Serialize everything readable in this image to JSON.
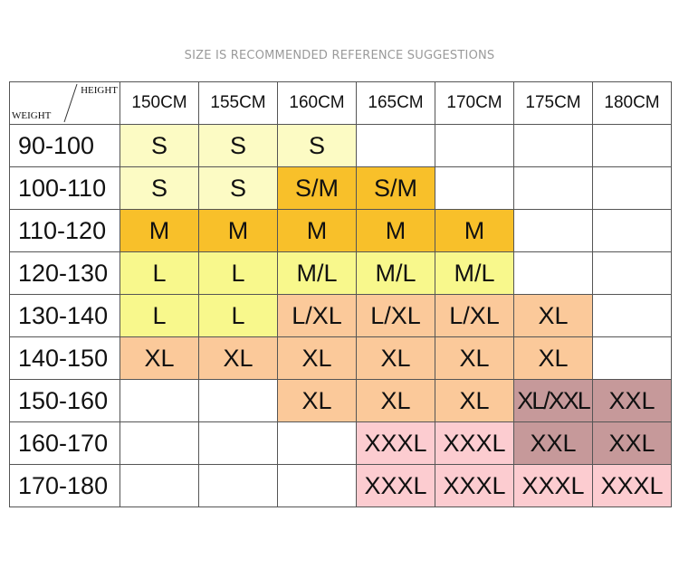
{
  "title": "SIZE IS RECOMMENDED REFERENCE SUGGESTIONS",
  "corner": {
    "height_label": "HEIGHT",
    "weight_label": "WEIGHT"
  },
  "heights": [
    "150CM",
    "155CM",
    "160CM",
    "165CM",
    "170CM",
    "175CM",
    "180CM"
  ],
  "colors": {
    "lightyellow": "#fcfbc4",
    "orange": "#f8c02a",
    "yellow": "#f8f88c",
    "peach": "#fbc99a",
    "pink": "#fcccd0",
    "mauve": "#c6999a",
    "empty": "#ffffff"
  },
  "rows": [
    {
      "weight": "90-100",
      "cells": [
        [
          "S",
          "lightyellow"
        ],
        [
          "S",
          "lightyellow"
        ],
        [
          "S",
          "lightyellow"
        ],
        [
          "",
          "empty"
        ],
        [
          "",
          "empty"
        ],
        [
          "",
          "empty"
        ],
        [
          "",
          "empty"
        ]
      ]
    },
    {
      "weight": "100-110",
      "cells": [
        [
          "S",
          "lightyellow"
        ],
        [
          "S",
          "lightyellow"
        ],
        [
          "S/M",
          "orange"
        ],
        [
          "S/M",
          "orange"
        ],
        [
          "",
          "empty"
        ],
        [
          "",
          "empty"
        ],
        [
          "",
          "empty"
        ]
      ]
    },
    {
      "weight": "110-120",
      "cells": [
        [
          "M",
          "orange"
        ],
        [
          "M",
          "orange"
        ],
        [
          "M",
          "orange"
        ],
        [
          "M",
          "orange"
        ],
        [
          "M",
          "orange"
        ],
        [
          "",
          "empty"
        ],
        [
          "",
          "empty"
        ]
      ]
    },
    {
      "weight": "120-130",
      "cells": [
        [
          "L",
          "yellow"
        ],
        [
          "L",
          "yellow"
        ],
        [
          "M/L",
          "yellow"
        ],
        [
          "M/L",
          "yellow"
        ],
        [
          "M/L",
          "yellow"
        ],
        [
          "",
          "empty"
        ],
        [
          "",
          "empty"
        ]
      ]
    },
    {
      "weight": "130-140",
      "cells": [
        [
          "L",
          "yellow"
        ],
        [
          "L",
          "yellow"
        ],
        [
          "L/XL",
          "peach"
        ],
        [
          "L/XL",
          "peach"
        ],
        [
          "L/XL",
          "peach"
        ],
        [
          "XL",
          "peach"
        ],
        [
          "",
          "empty"
        ]
      ]
    },
    {
      "weight": "140-150",
      "cells": [
        [
          "XL",
          "peach"
        ],
        [
          "XL",
          "peach"
        ],
        [
          "XL",
          "peach"
        ],
        [
          "XL",
          "peach"
        ],
        [
          "XL",
          "peach"
        ],
        [
          "XL",
          "peach"
        ],
        [
          "",
          "empty"
        ]
      ]
    },
    {
      "weight": "150-160",
      "cells": [
        [
          "",
          "empty"
        ],
        [
          "",
          "empty"
        ],
        [
          "XL",
          "peach"
        ],
        [
          "XL",
          "peach"
        ],
        [
          "XL",
          "peach"
        ],
        [
          "XL/XXL",
          "mauve"
        ],
        [
          "XXL",
          "mauve"
        ]
      ]
    },
    {
      "weight": "160-170",
      "cells": [
        [
          "",
          "empty"
        ],
        [
          "",
          "empty"
        ],
        [
          "",
          "empty"
        ],
        [
          "XXXL",
          "pink"
        ],
        [
          "XXXL",
          "pink"
        ],
        [
          "XXL",
          "mauve"
        ],
        [
          "XXL",
          "mauve"
        ]
      ]
    },
    {
      "weight": "170-180",
      "cells": [
        [
          "",
          "empty"
        ],
        [
          "",
          "empty"
        ],
        [
          "",
          "empty"
        ],
        [
          "XXXL",
          "pink"
        ],
        [
          "XXXL",
          "pink"
        ],
        [
          "XXXL",
          "pink"
        ],
        [
          "XXXL",
          "pink"
        ]
      ]
    }
  ]
}
